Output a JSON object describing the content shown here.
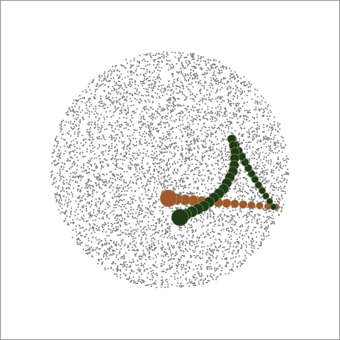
{
  "scene": {
    "dot_color": "#808080",
    "trails": [
      {
        "color": "#a0582a"
      },
      {
        "color": "#1f3a14"
      }
    ]
  }
}
